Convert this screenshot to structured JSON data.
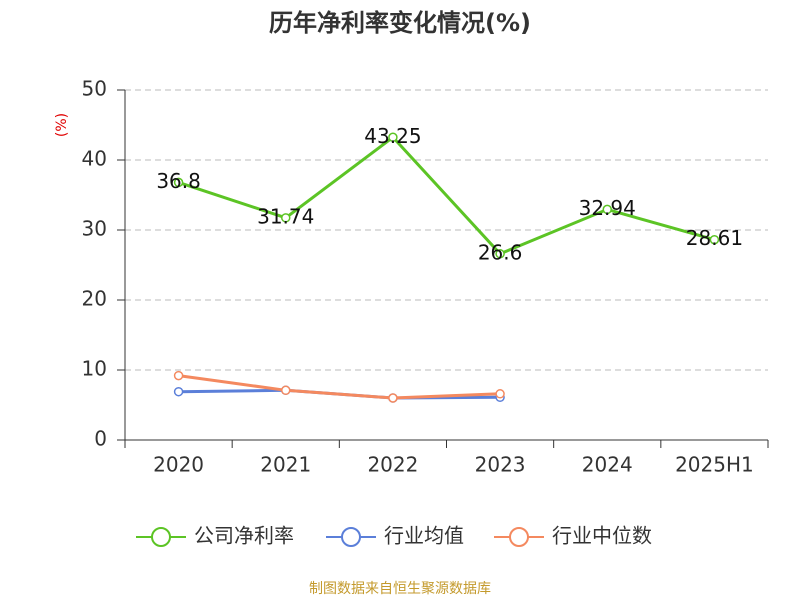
{
  "chart_data": {
    "type": "line",
    "title": "历年净利率变化情况(%)",
    "y_label": "(%)",
    "categories": [
      "2020",
      "2021",
      "2022",
      "2023",
      "2024",
      "2025H1"
    ],
    "series": [
      {
        "name": "公司净利率",
        "color": "#5cc425",
        "values": [
          36.8,
          31.74,
          43.25,
          26.6,
          32.94,
          28.61
        ],
        "data_labels": true
      },
      {
        "name": "行业均值",
        "color": "#5b7fd9",
        "values": [
          6.9,
          7.1,
          6.0,
          6.1,
          null,
          null
        ],
        "data_labels": false
      },
      {
        "name": "行业中位数",
        "color": "#f4895f",
        "values": [
          9.2,
          7.1,
          6.0,
          6.6,
          null,
          null
        ],
        "data_labels": false
      }
    ],
    "ylim": [
      0,
      50
    ],
    "yticks": [
      0,
      10,
      20,
      30,
      40,
      50
    ],
    "grid": true,
    "legend": "bottom",
    "source": "制图数据来自恒生聚源数据库"
  }
}
